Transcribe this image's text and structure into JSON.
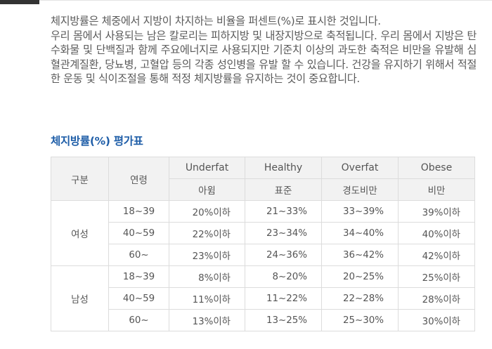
{
  "intro": {
    "line1": "체지방률은 체중에서 지방이 차지하는 비율을 퍼센트(%)로 표시한 것입니다.",
    "line2": "우리 몸에서 사용되는 남은 칼로리는 피하지방 및 내장지방으로 축적됩니다. 우리 몸에서 지방은 탄수화물 및 단백질과 함께 주요에너지로 사용되지만 기준치 이상의 과도한 축적은 비만을 유발해 심혈관계질환, 당뇨병, 고혈압 등의 각종 성인병을 유발 할 수 있습니다. 건강을 유지하기 위해서 적절한 운동 및 식이조절을 통해 적정 체지방률을 유지하는 것이 중요합니다."
  },
  "section_title": "체지방률(%) 평가표",
  "table": {
    "header": {
      "group": "구분",
      "age": "연령",
      "categories": [
        {
          "en": "Underfat",
          "ko": "아윔"
        },
        {
          "en": "Healthy",
          "ko": "표준"
        },
        {
          "en": "Overfat",
          "ko": "경도비만"
        },
        {
          "en": "Obese",
          "ko": "비만"
        }
      ]
    },
    "groups": [
      {
        "label": "여성",
        "rows": [
          {
            "age": "18~39",
            "values": [
              "20%이하",
              "21~33%",
              "33~39%",
              "39%이하"
            ]
          },
          {
            "age": "40~59",
            "values": [
              "22%이하",
              "23~34%",
              "34~40%",
              "40%이하"
            ]
          },
          {
            "age": "60~",
            "values": [
              "23%이하",
              "24~36%",
              "36~42%",
              "42%이하"
            ]
          }
        ]
      },
      {
        "label": "남성",
        "rows": [
          {
            "age": "18~39",
            "values": [
              "8%이하",
              "8~20%",
              "20~25%",
              "25%이하"
            ]
          },
          {
            "age": "40~59",
            "values": [
              "11%이하",
              "11~22%",
              "22~28%",
              "28%이하"
            ]
          },
          {
            "age": "60~",
            "values": [
              "13%이하",
              "13~25%",
              "25~30%",
              "30%이하"
            ]
          }
        ]
      }
    ]
  }
}
